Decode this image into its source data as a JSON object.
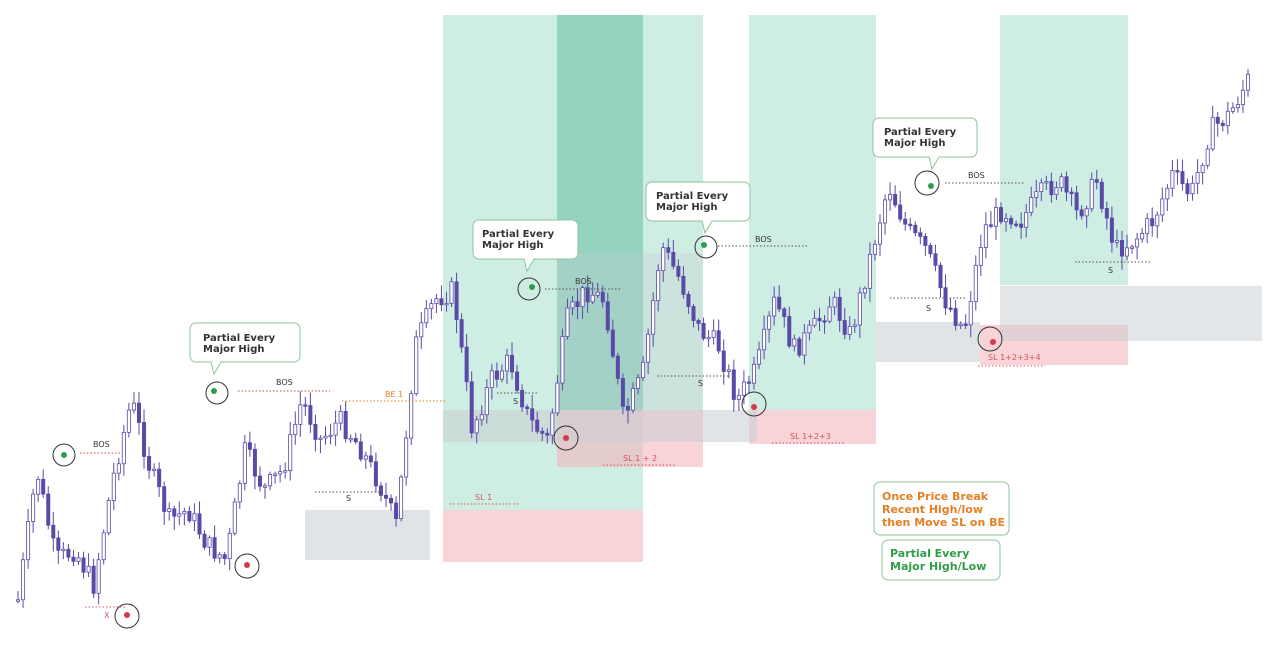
{
  "chart_data": {
    "type": "candlestick",
    "title": "",
    "grid": false,
    "legend_position": "bottom-right",
    "colors": {
      "candle": "#5a4aa8",
      "profit_zone": "#7fcfb6",
      "profit_zone_overlap": "#4fb39a",
      "stop_zone": "#f4b5bd",
      "structure_zone": "#c8cdd2",
      "high_point": "#2e9e4a",
      "low_point": "#d43a4a",
      "bos_line": "#c24a4a",
      "be_text": "#e67e22",
      "stop_text": "#d9535f"
    },
    "price_path": [
      600,
      470,
      560,
      550,
      585,
      480,
      400,
      470,
      520,
      510,
      545,
      560,
      450,
      490,
      470,
      400,
      440,
      420,
      445,
      480,
      525,
      345,
      300,
      290,
      430,
      380,
      360,
      420,
      440,
      320,
      290,
      300,
      420,
      375,
      245,
      280,
      330,
      345,
      400,
      370,
      300,
      350,
      330,
      300,
      335,
      260,
      185,
      230,
      250,
      300,
      330,
      230,
      210,
      220,
      195,
      180,
      215,
      180,
      250,
      240,
      220,
      175,
      195,
      130,
      115,
      80
    ]
  },
  "annotations": {
    "bos_labels": [
      "BOS",
      "BOS",
      "BOS",
      "BOS",
      "BOS"
    ],
    "s_labels": [
      "S",
      "S",
      "S",
      "S",
      "S"
    ],
    "x_label": "X",
    "be_label": "BE 1",
    "sl_labels": [
      "SL 1",
      "SL 1 + 2",
      "SL 1+2+3",
      "SL 1+2+3+4"
    ]
  },
  "callouts": [
    {
      "line1": "Partial Every",
      "line2": "Major High"
    },
    {
      "line1": "Partial Every",
      "line2": "Major High"
    },
    {
      "line1": "Partial Every",
      "line2": "Major High"
    },
    {
      "line1": "Partial Every",
      "line2": "Major High"
    }
  ],
  "legend": {
    "be_rule": [
      "Once Price Break",
      "Recent High/low",
      "then Move SL on BE"
    ],
    "partial_rule": [
      "Partial Every",
      "Major High/Low"
    ]
  }
}
